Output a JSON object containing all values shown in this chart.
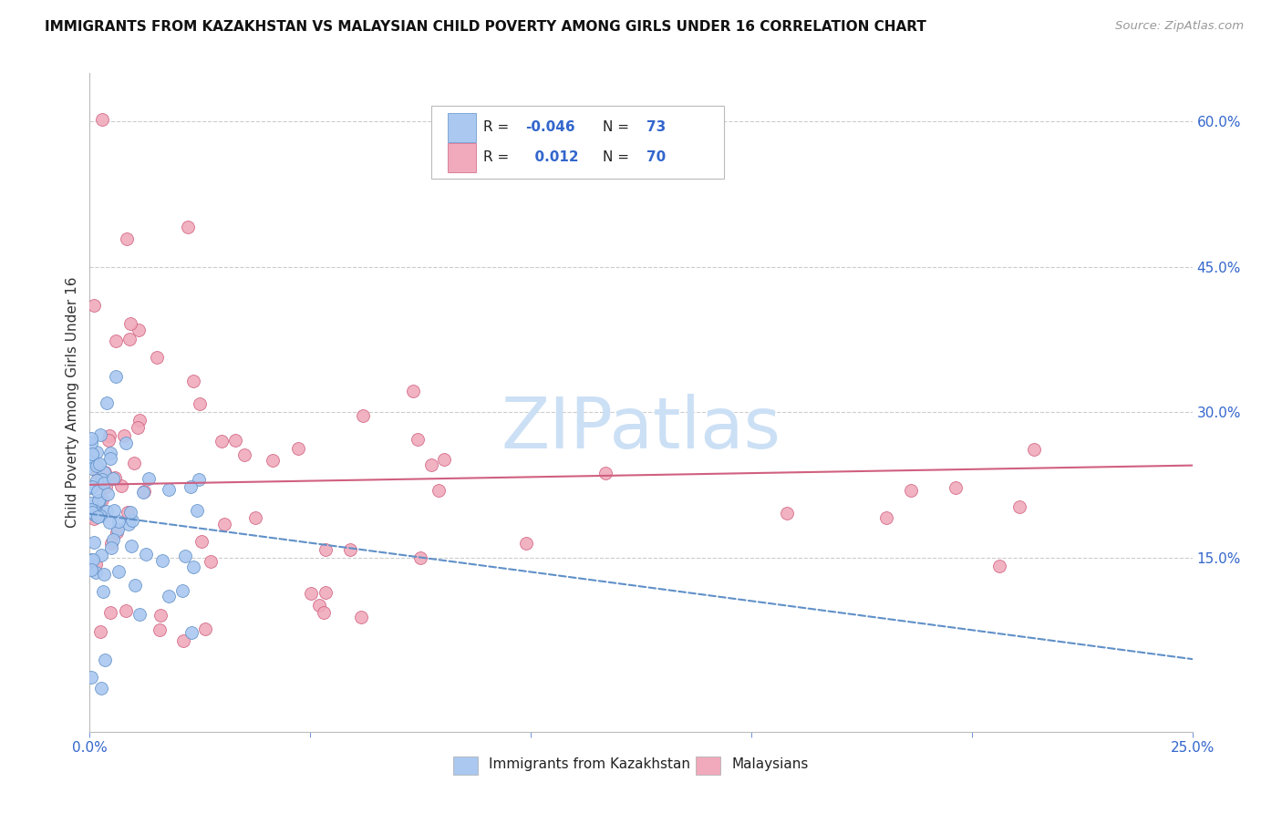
{
  "title": "IMMIGRANTS FROM KAZAKHSTAN VS MALAYSIAN CHILD POVERTY AMONG GIRLS UNDER 16 CORRELATION CHART",
  "source": "Source: ZipAtlas.com",
  "ylabel": "Child Poverty Among Girls Under 16",
  "series1_label": "Immigrants from Kazakhstan",
  "series2_label": "Malaysians",
  "color1": "#aac8f0",
  "color2": "#f0aabb",
  "trendline1_color": "#6090c8",
  "trendline2_color": "#d06080",
  "xlim": [
    0.0,
    0.25
  ],
  "ylim": [
    -0.03,
    0.65
  ],
  "yticks_right": [
    0.15,
    0.3,
    0.45,
    0.6
  ],
  "ytick_labels_right": [
    "15.0%",
    "30.0%",
    "45.0%",
    "60.0%"
  ],
  "xtick_positions": [
    0.0,
    0.05,
    0.1,
    0.15,
    0.2,
    0.25
  ],
  "xtick_labels": [
    "0.0%",
    "",
    "",
    "",
    "",
    "25.0%"
  ],
  "background_color": "#ffffff",
  "watermark": "ZIPatlas",
  "watermark_color": "#cce0f5",
  "trendline1_intercept": 0.195,
  "trendline1_slope": -0.6,
  "trendline2_intercept": 0.225,
  "trendline2_slope": 0.08
}
